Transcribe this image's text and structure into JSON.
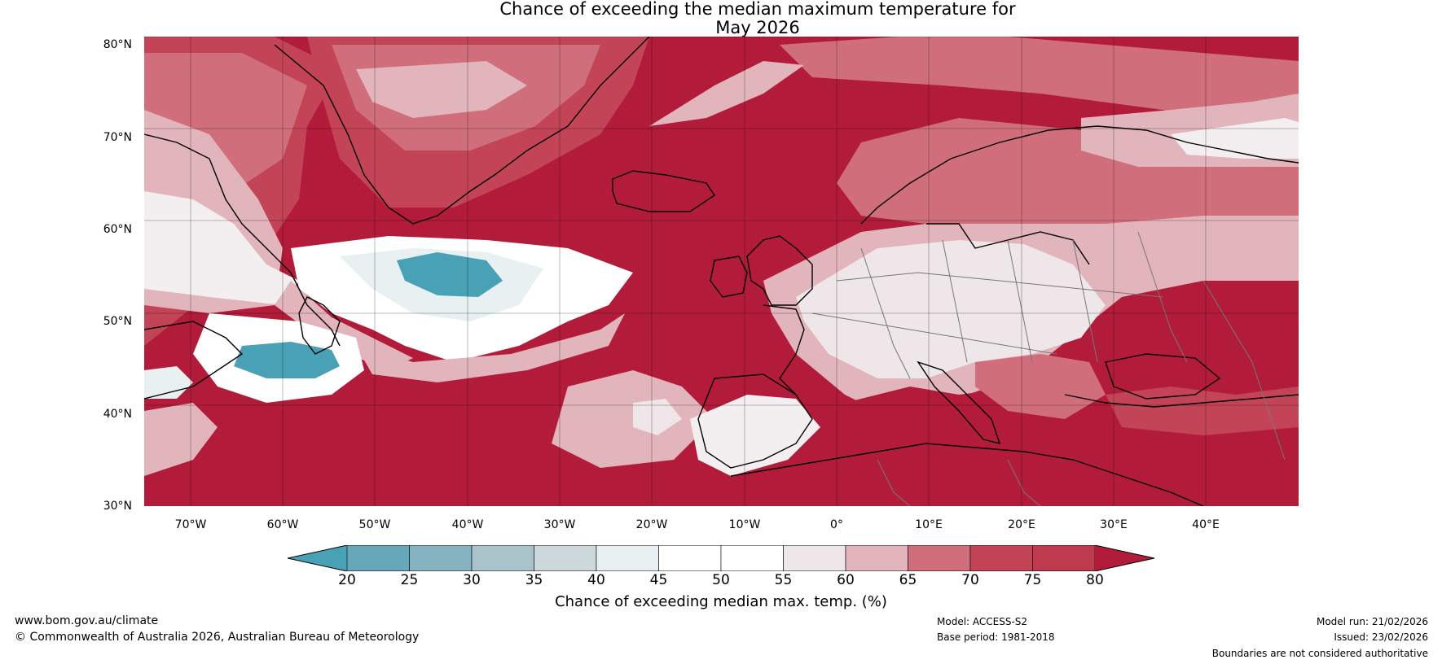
{
  "title": {
    "line1": "Chance of exceeding the median maximum temperature for",
    "line2": "May 2026"
  },
  "map": {
    "latitude_labels": [
      "80°N",
      "70°N",
      "60°N",
      "50°N",
      "40°N",
      "30°N"
    ],
    "longitude_labels": [
      "70°W",
      "60°W",
      "50°W",
      "40°W",
      "30°W",
      "20°W",
      "10°W",
      "0°",
      "10°E",
      "20°E",
      "30°E",
      "40°E"
    ],
    "extent": {
      "lon_min": -75,
      "lon_max": 50,
      "lat_min": 30,
      "lat_max": 81
    },
    "colors": {
      "c80": "#b21c3a",
      "c75": "#c44457",
      "c70": "#d16e7b",
      "c65": "#e2b4bb",
      "c60": "#eee6e8",
      "c50": "#ffffff",
      "c45": "#e8f0f2",
      "c40": "#ccd8dc",
      "c35": "#a9c3cb",
      "c30": "#86b3c1",
      "c25": "#66a8b8",
      "c20": "#48a1b4"
    }
  },
  "colorbar": {
    "ticks": [
      "20",
      "25",
      "30",
      "35",
      "40",
      "45",
      "50",
      "55",
      "60",
      "65",
      "70",
      "75",
      "80"
    ],
    "label": "Chance of exceeding median max. temp. (%)",
    "segment_colors": [
      "#66a8b8",
      "#86b3c1",
      "#a9c3cb",
      "#ccd8dc",
      "#e8f0f2",
      "#ffffff",
      "#ffffff",
      "#eee6e8",
      "#e2b4bb",
      "#d16e7b",
      "#c44457",
      "#bd3a4f"
    ],
    "low_end_color": "#48a1b4",
    "high_end_color": "#b21c3a"
  },
  "footer": {
    "website": "www.bom.gov.au/climate",
    "copyright": "© Commonwealth of Australia 2026, Australian Bureau of Meteorology",
    "model": "Model: ACCESS-S2",
    "base_period": "Base period: 1981-2018",
    "model_run": "Model run: 21/02/2026",
    "issued": "Issued: 23/02/2026",
    "disclaimer": "Boundaries are not considered authoritative"
  }
}
